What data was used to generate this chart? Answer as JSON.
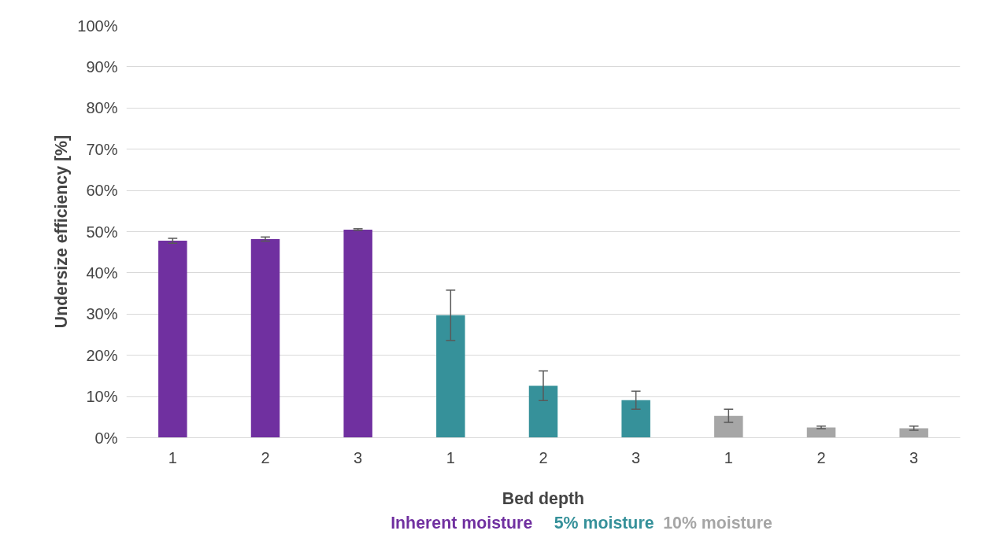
{
  "chart_data": {
    "type": "bar",
    "xlabel": "Bed depth",
    "ylabel": "Undersize efficiency [%]",
    "categories": [
      "1",
      "2",
      "3",
      "1",
      "2",
      "3",
      "1",
      "2",
      "3"
    ],
    "series": [
      {
        "name": "Inherent moisture",
        "color": "#7030a0",
        "values": [
          47.8,
          48.2,
          50.5,
          null,
          null,
          null,
          null,
          null,
          null
        ],
        "errors": [
          0.6,
          0.5,
          0.2,
          null,
          null,
          null,
          null,
          null,
          null
        ]
      },
      {
        "name": "5% moisture",
        "color": "#36919a",
        "values": [
          null,
          null,
          null,
          29.7,
          12.6,
          9.1,
          null,
          null,
          null
        ],
        "errors": [
          null,
          null,
          null,
          6.1,
          3.6,
          2.2,
          null,
          null,
          null
        ]
      },
      {
        "name": "10% moisture",
        "color": "#a6a6a6",
        "values": [
          null,
          null,
          null,
          null,
          null,
          null,
          5.3,
          2.5,
          2.3
        ],
        "errors": [
          null,
          null,
          null,
          null,
          null,
          null,
          1.6,
          0.3,
          0.5
        ]
      }
    ],
    "ylim": [
      0,
      100
    ],
    "yticks": [
      {
        "value": 0,
        "label": "0%"
      },
      {
        "value": 10,
        "label": "10%"
      },
      {
        "value": 20,
        "label": "20%"
      },
      {
        "value": 30,
        "label": "30%"
      },
      {
        "value": 40,
        "label": "40%"
      },
      {
        "value": 50,
        "label": "50%"
      },
      {
        "value": 60,
        "label": "60%"
      },
      {
        "value": 70,
        "label": "70%"
      },
      {
        "value": 80,
        "label": "80%"
      },
      {
        "value": 90,
        "label": "90%"
      },
      {
        "value": 100,
        "label": "100%"
      }
    ],
    "grid": "y"
  }
}
